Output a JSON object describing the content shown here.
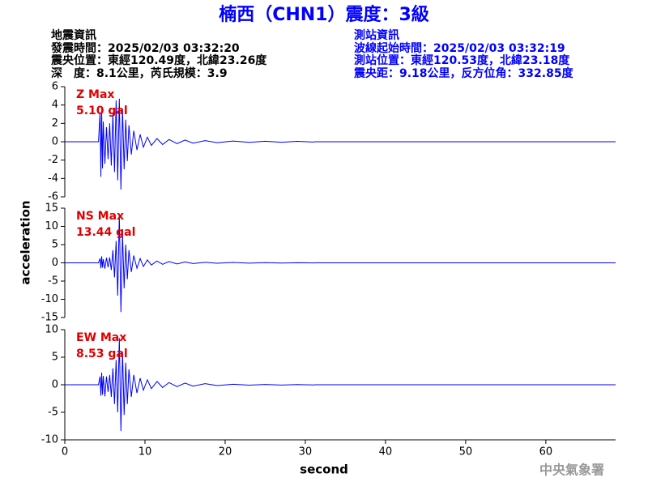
{
  "header": {
    "title": "楠西（CHN1）震度：3級",
    "left": [
      "地震資訊",
      "發震時間：2025/02/03 03:32:20",
      "震央位置：東經120.49度，北緯23.26度",
      "深　度：8.1公里，芮氏規模：3.9"
    ],
    "right": [
      "測站資訊",
      "波線起始時間：2025/02/03 03:32:19",
      "測站位置：東經120.53度，北緯23.18度",
      "震央距：9.18公里，反方位角：332.85度"
    ]
  },
  "footer": "中央氣象署",
  "chart_data": [
    {
      "type": "line",
      "annotations": [
        "Z Max",
        "5.10 gal"
      ],
      "color": "#0000ff",
      "xlim": [
        0,
        68.7
      ],
      "ylim": [
        -6,
        6
      ],
      "yticks": [
        -6,
        -4,
        -2,
        0,
        2,
        4,
        6
      ],
      "x": [
        0,
        4.2,
        4.4,
        4.5,
        4.6,
        4.7,
        4.8,
        5.0,
        5.2,
        5.4,
        5.6,
        5.8,
        6.0,
        6.2,
        6.4,
        6.6,
        6.8,
        7.0,
        7.2,
        7.4,
        7.6,
        7.8,
        8.0,
        8.3,
        8.6,
        9.0,
        9.4,
        9.8,
        10.3,
        10.8,
        11.5,
        12.2,
        13,
        14,
        15,
        16,
        17.5,
        19,
        21,
        23,
        25,
        27,
        29,
        31,
        31.2,
        68.7
      ],
      "values": [
        0,
        0,
        3.2,
        -3.8,
        3.5,
        -2.9,
        2.2,
        -2.4,
        1.6,
        -1.9,
        2.0,
        -2.6,
        3.1,
        -3.3,
        4.5,
        -4.2,
        4.7,
        -5.2,
        3.6,
        -3.0,
        2.4,
        -2.1,
        1.8,
        -1.4,
        1.2,
        -0.9,
        0.8,
        -0.6,
        0.5,
        -0.4,
        0.35,
        -0.3,
        0.25,
        -0.2,
        0.18,
        -0.15,
        0.12,
        -0.1,
        0.08,
        -0.07,
        0.06,
        -0.05,
        0.04,
        -0.03,
        0,
        0
      ]
    },
    {
      "type": "line",
      "annotations": [
        "NS Max",
        "13.44 gal"
      ],
      "color": "#0000ff",
      "ylabel": "acceleration",
      "xlim": [
        0,
        68.7
      ],
      "ylim": [
        -15,
        15
      ],
      "yticks": [
        -15,
        -10,
        -5,
        0,
        5,
        10,
        15
      ],
      "x": [
        0,
        4.2,
        4.4,
        4.5,
        4.6,
        4.7,
        4.8,
        5.0,
        5.2,
        5.4,
        5.6,
        5.8,
        6.0,
        6.2,
        6.4,
        6.6,
        6.8,
        7.0,
        7.2,
        7.4,
        7.6,
        7.8,
        8.0,
        8.3,
        8.6,
        9.0,
        9.4,
        9.8,
        10.3,
        10.8,
        11.5,
        12.2,
        13,
        14,
        15,
        16,
        17.5,
        19,
        21,
        23,
        25,
        27,
        29,
        31,
        31.2,
        68.7
      ],
      "values": [
        0,
        0,
        1.2,
        -1.5,
        1.8,
        -1.3,
        1.0,
        -1.6,
        1.4,
        -1.2,
        1.5,
        -2.0,
        3.5,
        -4.0,
        6.0,
        -9.0,
        13.4,
        -13.5,
        8.0,
        -7.0,
        5.0,
        -4.5,
        3.5,
        -2.5,
        2.0,
        -1.5,
        1.2,
        -1.0,
        0.8,
        -0.6,
        0.5,
        -0.4,
        0.35,
        -0.3,
        0.25,
        -0.2,
        0.15,
        -0.12,
        0.1,
        -0.08,
        0.06,
        -0.05,
        0.04,
        -0.03,
        0,
        0
      ]
    },
    {
      "type": "line",
      "annotations": [
        "EW Max",
        "8.53 gal"
      ],
      "color": "#0000ff",
      "xlabel": "second",
      "xlim": [
        0,
        68.7
      ],
      "xticks": [
        0,
        10,
        20,
        30,
        40,
        50,
        60
      ],
      "ylim": [
        -10,
        10
      ],
      "yticks": [
        -10,
        -5,
        0,
        5,
        10
      ],
      "x": [
        0,
        4.2,
        4.4,
        4.5,
        4.6,
        4.7,
        4.8,
        5.0,
        5.2,
        5.4,
        5.6,
        5.8,
        6.0,
        6.2,
        6.4,
        6.6,
        6.8,
        7.0,
        7.2,
        7.4,
        7.6,
        7.8,
        8.0,
        8.3,
        8.6,
        9.0,
        9.4,
        9.8,
        10.3,
        10.8,
        11.5,
        12.2,
        13,
        14,
        15,
        16,
        17.5,
        19,
        21,
        23,
        25,
        27,
        29,
        31,
        31.2,
        68.7
      ],
      "values": [
        0,
        0,
        1.5,
        -2.0,
        2.2,
        -1.8,
        1.6,
        -2.1,
        1.5,
        -1.3,
        1.8,
        -2.2,
        3.0,
        -3.5,
        4.5,
        -5.0,
        8.5,
        -8.4,
        6.0,
        -5.5,
        4.0,
        -3.5,
        2.8,
        -2.2,
        1.8,
        -1.5,
        1.2,
        -1.0,
        0.9,
        -0.7,
        0.6,
        -0.5,
        0.4,
        -0.35,
        0.3,
        -0.25,
        0.2,
        -0.15,
        0.1,
        -0.08,
        0.06,
        -0.05,
        0.04,
        -0.03,
        0,
        0
      ]
    }
  ]
}
